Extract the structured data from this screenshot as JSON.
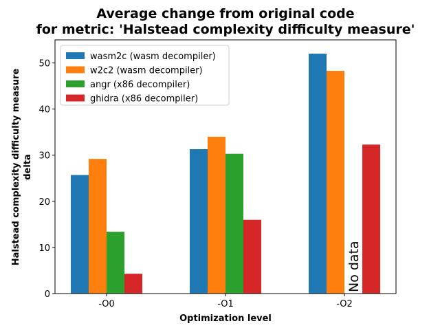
{
  "chart_data": {
    "type": "bar",
    "title_line1": "Average change from original code",
    "title_line2": "for metric: 'Halstead complexity difficulty measure'",
    "xlabel": "Optimization level",
    "ylabel_line1": "Halstead complexity difficulty measure",
    "ylabel_line2": "delta",
    "categories": [
      "-O0",
      "-O1",
      "-O2"
    ],
    "ylim": [
      0,
      55
    ],
    "yticks": [
      0,
      10,
      20,
      30,
      40,
      50
    ],
    "grid": false,
    "legend_position": "top-left",
    "series": [
      {
        "name": "wasm2c (wasm decompiler)",
        "color": "#1f77b4",
        "values": [
          25.7,
          31.3,
          52.0
        ]
      },
      {
        "name": "w2c2 (wasm decompiler)",
        "color": "#ff7f0e",
        "values": [
          29.2,
          34.0,
          48.3
        ]
      },
      {
        "name": "angr (x86 decompiler)",
        "color": "#2ca02c",
        "values": [
          13.4,
          30.3,
          null
        ]
      },
      {
        "name": "ghidra (x86 decompiler)",
        "color": "#d62728",
        "values": [
          4.3,
          16.0,
          32.3
        ]
      }
    ],
    "annotations": [
      {
        "text": "No data",
        "category": "-O2",
        "series": "angr (x86 decompiler)"
      }
    ]
  }
}
